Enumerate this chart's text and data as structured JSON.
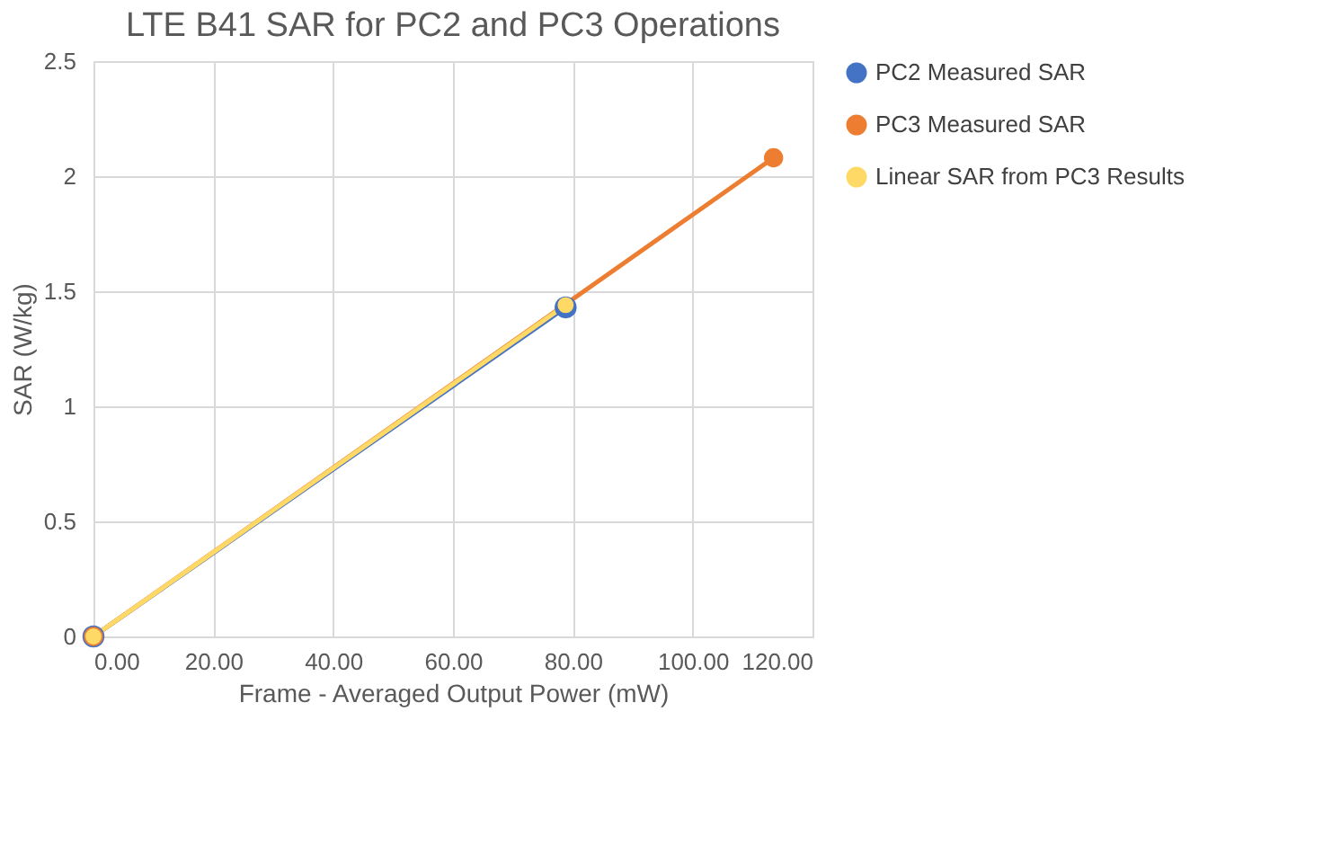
{
  "chart_data": {
    "type": "line",
    "title": "LTE B41 SAR for PC2 and PC3 Operations",
    "xlabel": "Frame - Averaged Output Power (mW)",
    "ylabel": "SAR (W/kg)",
    "series": [
      {
        "name": "PC2 Measured SAR",
        "color": "#4472c4",
        "x": [
          0,
          78.8
        ],
        "values": [
          0,
          1.43
        ]
      },
      {
        "name": "PC3 Measured SAR",
        "color": "#ed7d31",
        "x": [
          0,
          113.5
        ],
        "values": [
          0,
          2.08
        ]
      },
      {
        "name": "Linear SAR from PC3 Results",
        "color": "#ffd966",
        "x": [
          0,
          78.8
        ],
        "values": [
          0,
          1.44
        ]
      }
    ],
    "xlim": [
      0,
      120
    ],
    "xticks": [
      {
        "value": 0,
        "label": "0.00"
      },
      {
        "value": 20,
        "label": "20.00"
      },
      {
        "value": 40,
        "label": "40.00"
      },
      {
        "value": 60,
        "label": "60.00"
      },
      {
        "value": 80,
        "label": "80.00"
      },
      {
        "value": 100,
        "label": "100.00"
      },
      {
        "value": 120,
        "label": "120.00"
      }
    ],
    "ylim": [
      0,
      2.5
    ],
    "yticks": [
      0,
      0.5,
      1,
      1.5,
      2,
      2.5
    ],
    "grid": true,
    "legend": "right",
    "marker": "circle",
    "line_style": "solid"
  }
}
